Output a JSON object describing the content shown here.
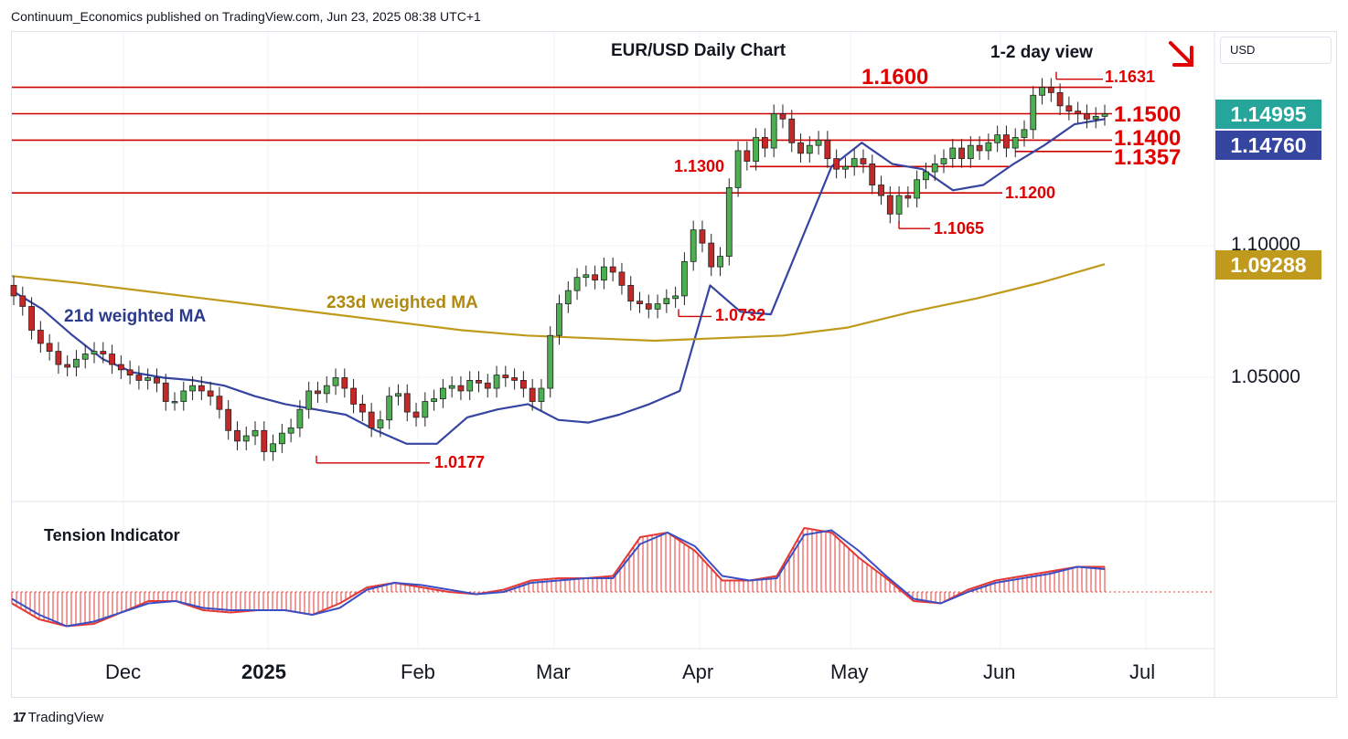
{
  "header": {
    "publisher_text": "Continuum_Economics published on TradingView.com, Jun 23, 2025 08:38 UTC+1"
  },
  "footer": {
    "brand": "TradingView",
    "logo_glyph": "17"
  },
  "price_scale": {
    "currency": "USD",
    "ticks": [
      "1.10000",
      "1.05000"
    ],
    "last_price": {
      "value": "1.14995",
      "color": "#26a69a"
    },
    "ma21_value": {
      "value": "1.14760",
      "color": "#3545a0"
    },
    "ma233_value": {
      "value": "1.09288",
      "color": "#c09a1c"
    }
  },
  "chart_data": {
    "type": "candlestick",
    "title": "EUR/USD Daily Chart",
    "subtitle": "1-2 day view",
    "bias_arrow": "down",
    "x_axis": {
      "labels": [
        "Dec",
        "2025",
        "Feb",
        "Mar",
        "Apr",
        "May",
        "Jun",
        "Jul"
      ]
    },
    "y_range": [
      1.0,
      1.17
    ],
    "levels": [
      {
        "label": "1.1600",
        "value": 1.16
      },
      {
        "label": "1.1500",
        "value": 1.15
      },
      {
        "label": "1.1400",
        "value": 1.14
      },
      {
        "label": "1.1357",
        "value": 1.1357
      },
      {
        "label": "1.1300",
        "value": 1.13
      },
      {
        "label": "1.1200",
        "value": 1.12
      }
    ],
    "annotations": [
      {
        "label": "1.1631",
        "value": 1.1631
      },
      {
        "label": "1.1065",
        "value": 1.1065
      },
      {
        "label": "1.0732",
        "value": 1.0732
      },
      {
        "label": "1.0177",
        "value": 1.0177
      }
    ],
    "series": [
      {
        "name": "21d weighted MA",
        "color": "#3545a0",
        "values": [
          1.083,
          1.076,
          1.066,
          1.057,
          1.052,
          1.05,
          1.049,
          1.047,
          1.043,
          1.04,
          1.038,
          1.036,
          1.03,
          1.025,
          1.025,
          1.035,
          1.038,
          1.04,
          1.034,
          1.033,
          1.036,
          1.04,
          1.045,
          1.085,
          1.075,
          1.074,
          1.102,
          1.13,
          1.139,
          1.131,
          1.129,
          1.121,
          1.123,
          1.131,
          1.138,
          1.146,
          1.148
        ]
      },
      {
        "name": "233d weighted MA",
        "color": "#c09a1c",
        "values": [
          1.0885,
          1.086,
          1.083,
          1.08,
          1.077,
          1.074,
          1.071,
          1.068,
          1.066,
          1.065,
          1.064,
          1.065,
          1.066,
          1.069,
          1.075,
          1.08,
          1.086,
          1.093
        ]
      }
    ],
    "ohlc_approx": {
      "x_start_index": 0,
      "closes": [
        1.081,
        1.077,
        1.068,
        1.063,
        1.06,
        1.055,
        1.054,
        1.057,
        1.059,
        1.06,
        1.059,
        1.055,
        1.053,
        1.051,
        1.049,
        1.05,
        1.048,
        1.041,
        1.041,
        1.045,
        1.047,
        1.045,
        1.043,
        1.038,
        1.03,
        1.026,
        1.028,
        1.03,
        1.022,
        1.025,
        1.029,
        1.031,
        1.038,
        1.045,
        1.044,
        1.047,
        1.05,
        1.046,
        1.04,
        1.037,
        1.031,
        1.034,
        1.043,
        1.044,
        1.037,
        1.035,
        1.041,
        1.042,
        1.046,
        1.047,
        1.045,
        1.049,
        1.048,
        1.046,
        1.051,
        1.05,
        1.049,
        1.046,
        1.041,
        1.046,
        1.066,
        1.078,
        1.083,
        1.088,
        1.089,
        1.087,
        1.092,
        1.09,
        1.085,
        1.079,
        1.078,
        1.076,
        1.078,
        1.08,
        1.081,
        1.094,
        1.106,
        1.101,
        1.092,
        1.096,
        1.122,
        1.136,
        1.132,
        1.141,
        1.137,
        1.15,
        1.148,
        1.139,
        1.135,
        1.138,
        1.14,
        1.133,
        1.129,
        1.13,
        1.133,
        1.131,
        1.123,
        1.119,
        1.112,
        1.119,
        1.118,
        1.125,
        1.128,
        1.131,
        1.133,
        1.137,
        1.133,
        1.138,
        1.136,
        1.139,
        1.142,
        1.137,
        1.141,
        1.144,
        1.157,
        1.16,
        1.158,
        1.153,
        1.151,
        1.15,
        1.148,
        1.149,
        1.14995
      ]
    },
    "indicator": {
      "title": "Tension Indicator",
      "series": [
        {
          "name": "tension",
          "color": "#e53935",
          "values": [
            -0.5,
            -1.2,
            -1.5,
            -1.4,
            -0.9,
            -0.4,
            -0.4,
            -0.8,
            -0.9,
            -0.8,
            -0.8,
            -1.0,
            -0.5,
            0.2,
            0.4,
            0.2,
            0.0,
            -0.1,
            0.1,
            0.5,
            0.6,
            0.6,
            0.7,
            2.4,
            2.6,
            1.8,
            0.5,
            0.5,
            0.7,
            2.8,
            2.6,
            1.5,
            0.6,
            -0.4,
            -0.5,
            0.1,
            0.5,
            0.7,
            0.9,
            1.1,
            1.1
          ]
        },
        {
          "name": "signal",
          "color": "#3b4fc4",
          "values": [
            -0.3,
            -1.0,
            -1.5,
            -1.3,
            -0.9,
            -0.5,
            -0.4,
            -0.7,
            -0.8,
            -0.8,
            -0.8,
            -1.0,
            -0.7,
            0.1,
            0.4,
            0.3,
            0.1,
            -0.1,
            0.0,
            0.4,
            0.5,
            0.6,
            0.6,
            2.1,
            2.6,
            2.0,
            0.7,
            0.5,
            0.6,
            2.5,
            2.7,
            1.8,
            0.7,
            -0.3,
            -0.5,
            0.0,
            0.4,
            0.6,
            0.8,
            1.1,
            1.0
          ]
        }
      ]
    }
  },
  "labels": {
    "ma21_label": "21d weighted MA",
    "ma233_label": "233d weighted MA",
    "tension_label": "Tension Indicator"
  }
}
